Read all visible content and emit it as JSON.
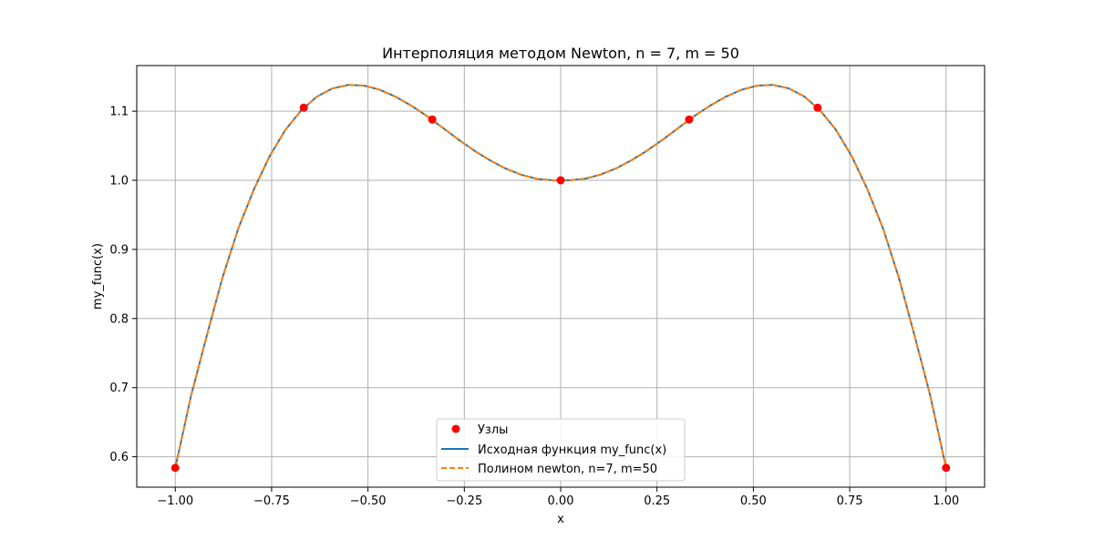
{
  "chart_data": {
    "type": "line",
    "title": "Интерполяция методом Newton, n = 7, m = 50",
    "xlabel": "x",
    "ylabel": "my_func(x)",
    "xlim": [
      -1.1,
      1.1
    ],
    "ylim": [
      0.556,
      1.166
    ],
    "xticks": [
      -1.0,
      -0.75,
      -0.5,
      -0.25,
      0.0,
      0.25,
      0.5,
      0.75,
      1.0
    ],
    "xtick_labels": [
      "−1.00",
      "−0.75",
      "−0.50",
      "−0.25",
      "0.00",
      "0.25",
      "0.50",
      "0.75",
      "1.00"
    ],
    "yticks": [
      0.6,
      0.7,
      0.8,
      0.9,
      1.0,
      1.1
    ],
    "ytick_labels": [
      "0.6",
      "0.7",
      "0.8",
      "0.9",
      "1.0",
      "1.1"
    ],
    "grid": true,
    "legend_position": "lower-center",
    "nodes": {
      "name": "Узлы",
      "color": "#ff0000",
      "x": [
        -1.0,
        -0.6667,
        -0.3333,
        0.0,
        0.3333,
        0.6667,
        1.0
      ],
      "y": [
        0.584,
        1.105,
        1.088,
        1.0,
        1.088,
        1.105,
        0.584
      ]
    },
    "series": [
      {
        "name": "Исходная функция my_func(x)",
        "color": "#1f77b4",
        "style": "solid",
        "x": [
          -1.0,
          -0.9592,
          -0.9184,
          -0.8776,
          -0.8367,
          -0.7959,
          -0.7551,
          -0.7143,
          -0.6735,
          -0.6327,
          -0.5918,
          -0.551,
          -0.5102,
          -0.4694,
          -0.4286,
          -0.3878,
          -0.3469,
          -0.3061,
          -0.2653,
          -0.2245,
          -0.1837,
          -0.1429,
          -0.102,
          -0.0612,
          -0.0204,
          0.0204,
          0.0612,
          0.102,
          0.1429,
          0.1837,
          0.2245,
          0.2653,
          0.3061,
          0.3469,
          0.3878,
          0.4286,
          0.4694,
          0.5102,
          0.551,
          0.5918,
          0.6327,
          0.6735,
          0.7143,
          0.7551,
          0.7959,
          0.8367,
          0.8776,
          0.9184,
          0.9592,
          1.0
        ],
        "y": [
          0.584,
          0.688,
          0.775,
          0.859,
          0.93,
          0.987,
          1.035,
          1.073,
          1.101,
          1.121,
          1.133,
          1.138,
          1.137,
          1.131,
          1.121,
          1.108,
          1.093,
          1.076,
          1.059,
          1.043,
          1.029,
          1.017,
          1.008,
          1.002,
          1.0,
          1.0,
          1.002,
          1.008,
          1.017,
          1.029,
          1.043,
          1.059,
          1.076,
          1.093,
          1.108,
          1.121,
          1.131,
          1.137,
          1.138,
          1.133,
          1.121,
          1.101,
          1.073,
          1.035,
          0.987,
          0.93,
          0.859,
          0.775,
          0.688,
          0.584
        ]
      },
      {
        "name": "Полином newton, n=7, m=50",
        "color": "#ff7f0e",
        "style": "dashed",
        "x": [
          -1.0,
          -0.9592,
          -0.9184,
          -0.8776,
          -0.8367,
          -0.7959,
          -0.7551,
          -0.7143,
          -0.6735,
          -0.6327,
          -0.5918,
          -0.551,
          -0.5102,
          -0.4694,
          -0.4286,
          -0.3878,
          -0.3469,
          -0.3061,
          -0.2653,
          -0.2245,
          -0.1837,
          -0.1429,
          -0.102,
          -0.0612,
          -0.0204,
          0.0204,
          0.0612,
          0.102,
          0.1429,
          0.1837,
          0.2245,
          0.2653,
          0.3061,
          0.3469,
          0.3878,
          0.4286,
          0.4694,
          0.5102,
          0.551,
          0.5918,
          0.6327,
          0.6735,
          0.7143,
          0.7551,
          0.7959,
          0.8367,
          0.8776,
          0.9184,
          0.9592,
          1.0
        ],
        "y": [
          0.584,
          0.688,
          0.775,
          0.859,
          0.93,
          0.987,
          1.035,
          1.073,
          1.101,
          1.121,
          1.133,
          1.138,
          1.137,
          1.131,
          1.121,
          1.108,
          1.093,
          1.076,
          1.059,
          1.043,
          1.029,
          1.017,
          1.008,
          1.002,
          1.0,
          1.0,
          1.002,
          1.008,
          1.017,
          1.029,
          1.043,
          1.059,
          1.076,
          1.093,
          1.108,
          1.121,
          1.131,
          1.137,
          1.138,
          1.133,
          1.121,
          1.101,
          1.073,
          1.035,
          0.987,
          0.93,
          0.859,
          0.775,
          0.688,
          0.584
        ]
      }
    ]
  }
}
